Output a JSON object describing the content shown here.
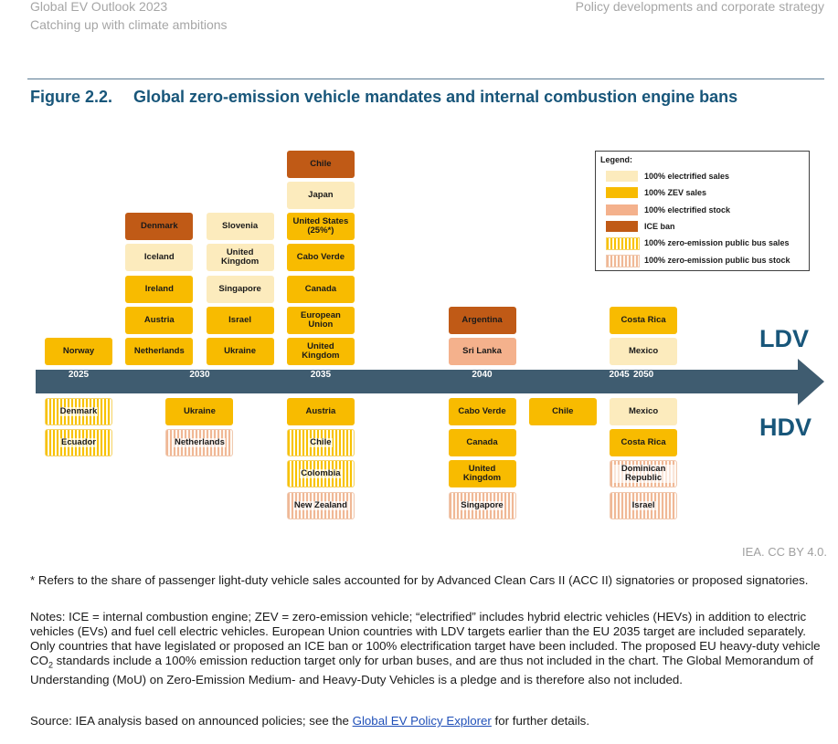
{
  "header": {
    "left_line1": "Global EV Outlook 2023",
    "left_line2": "Catching up with climate ambitions",
    "right": "Policy developments and corporate strategy"
  },
  "figure": {
    "number": "Figure 2.2.",
    "title": "Global zero-emission vehicle mandates and internal combustion engine bans"
  },
  "colors": {
    "electrified_sales": "#fcebbd",
    "zev_sales": "#f8bb00",
    "electrified_stock": "#f4b18c",
    "ice_ban": "#c05a16",
    "bus_sales_stripe": "#f8c200",
    "bus_stock_stripe": "#f0b896",
    "timeline": "#3f5c70",
    "title": "#18567a"
  },
  "timeline": {
    "years": [
      "2025",
      "2030",
      "2035",
      "2040",
      "2045",
      "2050"
    ],
    "ldv_label": "LDV",
    "hdv_label": "HDV"
  },
  "ldv": [
    {
      "year": "2025",
      "col": 0,
      "entries": [
        {
          "name": "Norway",
          "type": "zev"
        }
      ]
    },
    {
      "year": "2030",
      "col": 1,
      "entries": [
        {
          "name": "Netherlands",
          "type": "zev"
        },
        {
          "name": "Austria",
          "type": "zev"
        },
        {
          "name": "Ireland",
          "type": "zev"
        },
        {
          "name": "Iceland",
          "type": "electrified"
        },
        {
          "name": "Denmark",
          "type": "ice"
        }
      ]
    },
    {
      "year": "2030",
      "col": 2,
      "entries": [
        {
          "name": "Ukraine",
          "type": "zev"
        },
        {
          "name": "Israel",
          "type": "zev"
        },
        {
          "name": "Singapore",
          "type": "electrified"
        },
        {
          "name": "United Kingdom",
          "type": "electrified"
        },
        {
          "name": "Slovenia",
          "type": "electrified"
        }
      ]
    },
    {
      "year": "2035",
      "col": 3,
      "entries": [
        {
          "name": "United Kingdom",
          "type": "zev"
        },
        {
          "name": "European Union",
          "type": "zev"
        },
        {
          "name": "Canada",
          "type": "zev"
        },
        {
          "name": "Cabo Verde",
          "type": "zev"
        },
        {
          "name": "United States (25%*)",
          "type": "zev"
        },
        {
          "name": "Japan",
          "type": "electrified"
        },
        {
          "name": "Chile",
          "type": "ice"
        }
      ]
    },
    {
      "year": "2040",
      "col": 5,
      "entries": [
        {
          "name": "Sri Lanka",
          "type": "stock"
        },
        {
          "name": "Argentina",
          "type": "ice"
        }
      ]
    },
    {
      "year": "2050",
      "col": 7,
      "entries": [
        {
          "name": "Mexico",
          "type": "electrified"
        },
        {
          "name": "Costa Rica",
          "type": "zev"
        }
      ]
    }
  ],
  "hdv": [
    {
      "year": "2025",
      "col": 0,
      "entries": [
        {
          "name": "Denmark",
          "type": "bus_sales"
        },
        {
          "name": "Ecuador",
          "type": "bus_sales"
        }
      ]
    },
    {
      "year": "2030",
      "col": 1.5,
      "entries": [
        {
          "name": "Ukraine",
          "type": "zev"
        },
        {
          "name": "Netherlands",
          "type": "bus_stock"
        }
      ]
    },
    {
      "year": "2035",
      "col": 3,
      "entries": [
        {
          "name": "Austria",
          "type": "zev"
        },
        {
          "name": "Chile",
          "type": "bus_sales"
        },
        {
          "name": "Colombia",
          "type": "bus_sales"
        },
        {
          "name": "New Zealand",
          "type": "bus_stock"
        }
      ]
    },
    {
      "year": "2040",
      "col": 5,
      "entries": [
        {
          "name": "Cabo Verde",
          "type": "zev"
        },
        {
          "name": "Canada",
          "type": "zev"
        },
        {
          "name": "United Kingdom",
          "type": "zev"
        },
        {
          "name": "Singapore",
          "type": "bus_stock"
        }
      ]
    },
    {
      "year": "2045",
      "col": 6,
      "entries": [
        {
          "name": "Chile",
          "type": "zev"
        }
      ]
    },
    {
      "year": "2050",
      "col": 7,
      "entries": [
        {
          "name": "Mexico",
          "type": "electrified"
        },
        {
          "name": "Costa Rica",
          "type": "zev"
        },
        {
          "name": "Dominican Republic",
          "type": "bus_stock"
        },
        {
          "name": "Israel",
          "type": "bus_stock"
        }
      ]
    }
  ],
  "legend": {
    "title": "Legend:",
    "items": [
      {
        "type": "electrified",
        "label": "100% electrified sales"
      },
      {
        "type": "zev",
        "label": "100% ZEV sales"
      },
      {
        "type": "stock",
        "label": "100% electrified stock"
      },
      {
        "type": "ice",
        "label": "ICE ban"
      },
      {
        "type": "bus_sales",
        "label": "100% zero-emission public bus sales"
      },
      {
        "type": "bus_stock",
        "label": "100% zero-emission public bus stock"
      }
    ]
  },
  "credit": "IEA. CC BY 4.0.",
  "footnote": "* Refers to the share of passenger light-duty vehicle sales accounted for by Advanced Clean Cars II (ACC II) signatories or proposed signatories.",
  "notes_before_co2": "Notes: ICE = internal combustion engine; ZEV = zero-emission vehicle; “electrified” includes hybrid electric vehicles (HEVs) in addition to electric vehicles (EVs) and fuel cell electric vehicles. European Union countries with LDV targets earlier than the EU 2035 target are included separately. Only countries that have legislated or proposed an ICE ban or 100% electrification target have been included. The proposed EU heavy-duty vehicle CO",
  "notes_sub": "2",
  "notes_after_co2": " standards include a 100% emission reduction target only for urban buses, and are thus not included in the chart. The Global Memorandum of Understanding (MoU) on Zero-Emission Medium- and Heavy-Duty Vehicles is a pledge and is therefore also not included.",
  "source_prefix": "Source: IEA analysis based on announced policies; see the ",
  "source_link": "Global EV Policy Explorer",
  "source_suffix": " for further details."
}
